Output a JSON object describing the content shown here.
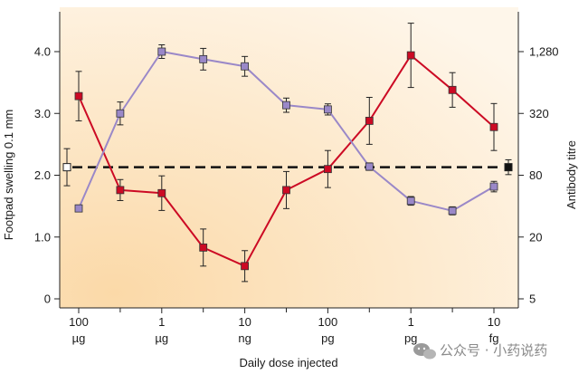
{
  "chart_data": {
    "type": "line",
    "x_ticks": [
      {
        "value": "100",
        "unit": "µg"
      },
      {
        "value": "1",
        "unit": "µg"
      },
      {
        "value": "10",
        "unit": "ng"
      },
      {
        "value": "100",
        "unit": "pg"
      },
      {
        "value": "1",
        "unit": "pg"
      },
      {
        "value": "10",
        "unit": "fg"
      }
    ],
    "xlabel": "Daily dose injected",
    "ylabel_left": "Footpad swelling 0.1 mm",
    "ylabel_right": "Antibody titre",
    "y_left_ticks": [
      "0",
      "1.0",
      "2.0",
      "3.0",
      "4.0"
    ],
    "y_left_lim": [
      0,
      4.4
    ],
    "y_right_ticks": [
      "5",
      "20",
      "80",
      "320",
      "1,280"
    ],
    "y_right_scale": "log",
    "grid": false,
    "background": "cream-gradient",
    "series": [
      {
        "marker": "square",
        "axis": "left",
        "color": "#cc0a24",
        "points": [
          {
            "x": 0,
            "y": 3.28,
            "err": 0.4
          },
          {
            "x": 1,
            "y": 1.76,
            "err": 0.17
          },
          {
            "x": 2,
            "y": 1.71,
            "err": 0.28
          },
          {
            "x": 3,
            "y": 0.83,
            "err": 0.3
          },
          {
            "x": 4,
            "y": 0.53,
            "err": 0.25
          },
          {
            "x": 5,
            "y": 1.76,
            "err": 0.3
          },
          {
            "x": 6,
            "y": 2.1,
            "err": 0.3
          },
          {
            "x": 7,
            "y": 2.88,
            "err": 0.38
          },
          {
            "x": 8,
            "y": 3.94,
            "err": 0.52
          },
          {
            "x": 9,
            "y": 3.38,
            "err": 0.28
          },
          {
            "x": 10,
            "y": 2.78,
            "err": 0.38
          }
        ]
      },
      {
        "marker": "square",
        "axis": "right",
        "color": "#9a88c8",
        "points": [
          {
            "x": 0,
            "y": 38,
            "err": 0.11
          },
          {
            "x": 1,
            "y": 320,
            "err": 0.37
          },
          {
            "x": 2,
            "y": 1280,
            "err": 0.22
          },
          {
            "x": 3,
            "y": 1080,
            "err": 0.35
          },
          {
            "x": 4,
            "y": 920,
            "err": 0.32
          },
          {
            "x": 5,
            "y": 385,
            "err": 0.23
          },
          {
            "x": 6,
            "y": 350,
            "err": 0.18
          },
          {
            "x": 7,
            "y": 97,
            "err": 0.12
          },
          {
            "x": 8,
            "y": 45,
            "err": 0.14
          },
          {
            "x": 9,
            "y": 36,
            "err": 0.13
          },
          {
            "x": 10,
            "y": 62,
            "err": 0.17
          }
        ]
      }
    ],
    "reference_line": {
      "y": 2.13,
      "style": "dashed",
      "color": "#111111"
    },
    "control_markers": [
      {
        "side": "left",
        "fill": "#ffffff",
        "y": 2.13,
        "err": 0.3
      },
      {
        "side": "right",
        "fill": "#111111",
        "y": 2.13,
        "err": 0.12
      }
    ]
  },
  "watermark": {
    "text": "公众号 · 小药说药",
    "icon": "wechat-icon"
  }
}
